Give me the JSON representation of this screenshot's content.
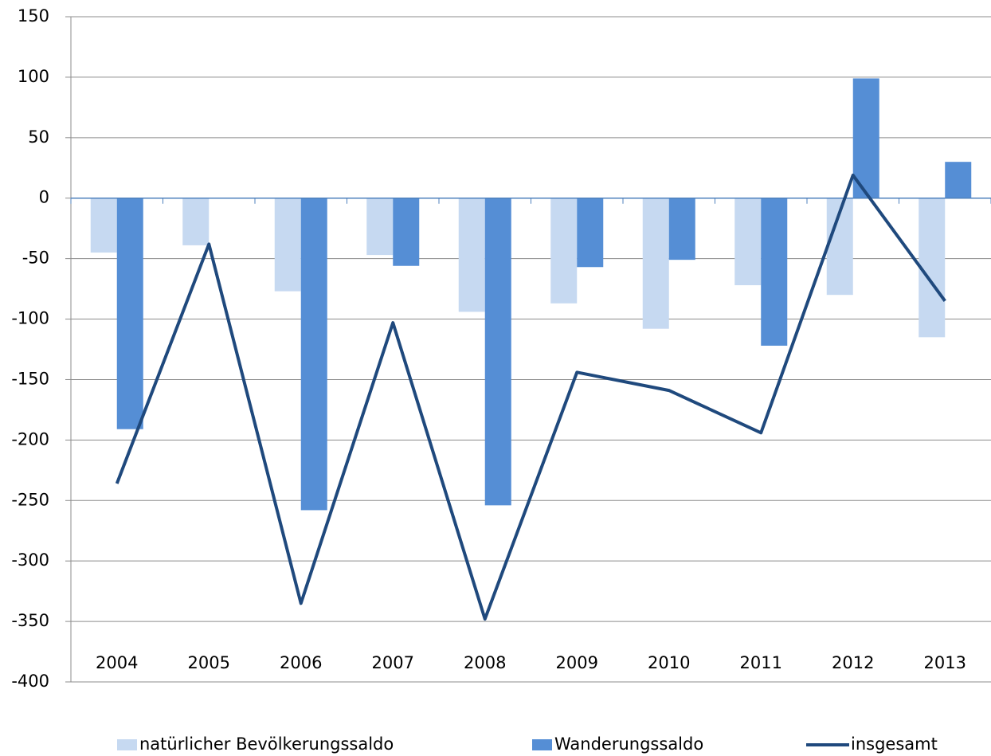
{
  "chart_data": {
    "type": "bar_line",
    "categories": [
      "2004",
      "2005",
      "2006",
      "2007",
      "2008",
      "2009",
      "2010",
      "2011",
      "2012",
      "2013"
    ],
    "series": [
      {
        "name": "natürlicher Bevölkerungssaldo",
        "color": "#c6d9f1",
        "type": "bar",
        "values": [
          -45,
          -39,
          -77,
          -47,
          -94,
          -87,
          -108,
          -72,
          -80,
          -115
        ]
      },
      {
        "name": "Wanderungssaldo",
        "color": "#558ed5",
        "type": "bar",
        "values": [
          -191,
          0,
          -258,
          -56,
          -254,
          -57,
          -51,
          -122,
          99,
          30
        ]
      },
      {
        "name": "insgesamt",
        "color": "#1f497d",
        "type": "line",
        "values": [
          -236,
          -38,
          -335,
          -103,
          -348,
          -144,
          -159,
          -194,
          19,
          -85
        ]
      }
    ],
    "ylim": [
      -400,
      150
    ],
    "yticks": [
      -400,
      -350,
      -300,
      -250,
      -200,
      -150,
      -100,
      -50,
      0,
      50,
      100,
      150
    ],
    "grid": true,
    "legend": "bottom"
  }
}
